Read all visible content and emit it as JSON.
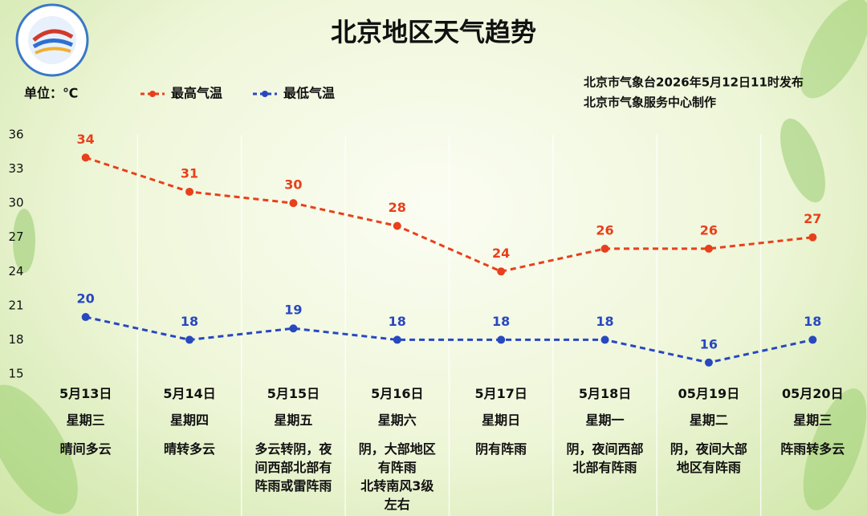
{
  "chart_data": {
    "type": "line",
    "title": "北京地区天气趋势",
    "unit_label": "单位：℃",
    "categories": [
      "5月13日",
      "5月14日",
      "5月15日",
      "5月16日",
      "5月17日",
      "5月18日",
      "05月19日",
      "05月20日"
    ],
    "series": [
      {
        "name": "最高气温",
        "color": "#e8401c",
        "values": [
          34,
          31,
          30,
          28,
          24,
          26,
          26,
          27
        ]
      },
      {
        "name": "最低气温",
        "color": "#2848c0",
        "values": [
          20,
          18,
          19,
          18,
          18,
          18,
          16,
          18
        ]
      }
    ],
    "ylim": [
      15,
      36
    ],
    "yticks": [
      15,
      18,
      21,
      24,
      27,
      30,
      33,
      36
    ],
    "weekdays": [
      "星期三",
      "星期四",
      "星期五",
      "星期六",
      "星期日",
      "星期一",
      "星期二",
      "星期三"
    ],
    "weather": [
      "晴间多云",
      "晴转多云",
      "多云转阴，夜间西部北部有阵雨或雷阵雨",
      "阴，大部地区有阵雨\n北转南风3级左右",
      "阴有阵雨",
      "阴，夜间西部北部有阵雨",
      "阴，夜间大部地区有阵雨",
      "阵雨转多云"
    ],
    "notes": [
      "北京市气象台2026年5月12日11时发布",
      "北京市气象服务中心制作"
    ]
  }
}
